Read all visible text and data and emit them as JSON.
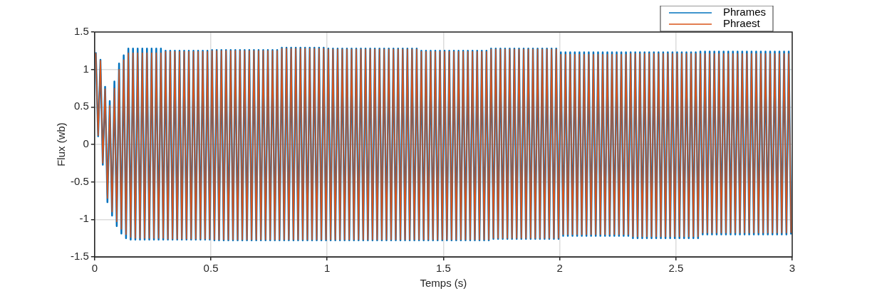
{
  "chart_data": {
    "type": "line",
    "xlabel": "Temps (s)",
    "ylabel": "Flux (wb)",
    "xlim": [
      0,
      3
    ],
    "xticks": [
      0,
      0.5,
      1,
      1.5,
      2,
      2.5,
      3
    ],
    "ylim": [
      -1.5,
      1.5
    ],
    "yticks": [
      -1.5,
      -1,
      -0.5,
      0,
      0.5,
      1,
      1.5
    ],
    "grid": true,
    "legend": "top right",
    "x": [
      0.005,
      0.015,
      0.025,
      0.035,
      0.045,
      0.055,
      0.065,
      0.075,
      0.085,
      0.095,
      0.105,
      0.115,
      0.125,
      0.135,
      0.145,
      0.155,
      0.165,
      0.175,
      0.185,
      0.195,
      0.205,
      0.215,
      0.225,
      0.235,
      0.245,
      0.255,
      0.265,
      0.275,
      0.285,
      0.295,
      0.305,
      0.315,
      0.325,
      0.335,
      0.345,
      0.355,
      0.365,
      0.375,
      0.385,
      0.395,
      0.405,
      0.415,
      0.425,
      0.435,
      0.445,
      0.455,
      0.465,
      0.475,
      0.485,
      0.495,
      0.505,
      0.515,
      0.525,
      0.535,
      0.545,
      0.555,
      0.565,
      0.575,
      0.585,
      0.595,
      0.605,
      0.615,
      0.625,
      0.635,
      0.645,
      0.655,
      0.665,
      0.675,
      0.685,
      0.695,
      0.705,
      0.715,
      0.725,
      0.735,
      0.745,
      0.755,
      0.765,
      0.775,
      0.785,
      0.795,
      0.805,
      0.815,
      0.825,
      0.835,
      0.845,
      0.855,
      0.865,
      0.875,
      0.885,
      0.895,
      0.905,
      0.915,
      0.925,
      0.935,
      0.945,
      0.955,
      0.965,
      0.975,
      0.985,
      0.995,
      1.005,
      1.015,
      1.025,
      1.035,
      1.045,
      1.055,
      1.065,
      1.075,
      1.085,
      1.095,
      1.105,
      1.115,
      1.125,
      1.135,
      1.145,
      1.155,
      1.165,
      1.175,
      1.185,
      1.195,
      1.205,
      1.215,
      1.225,
      1.235,
      1.245,
      1.255,
      1.265,
      1.275,
      1.285,
      1.295,
      1.305,
      1.315,
      1.325,
      1.335,
      1.345,
      1.355,
      1.365,
      1.375,
      1.385,
      1.395,
      1.405,
      1.415,
      1.425,
      1.435,
      1.445,
      1.455,
      1.465,
      1.475,
      1.485,
      1.495,
      1.505,
      1.515,
      1.525,
      1.535,
      1.545,
      1.555,
      1.565,
      1.575,
      1.585,
      1.595,
      1.605,
      1.615,
      1.625,
      1.635,
      1.645,
      1.655,
      1.665,
      1.675,
      1.685,
      1.695,
      1.705,
      1.715,
      1.725,
      1.735,
      1.745,
      1.755,
      1.765,
      1.775,
      1.785,
      1.795,
      1.805,
      1.815,
      1.825,
      1.835,
      1.845,
      1.855,
      1.865,
      1.875,
      1.885,
      1.895,
      1.905,
      1.915,
      1.925,
      1.935,
      1.945,
      1.955,
      1.965,
      1.975,
      1.985,
      1.995,
      2.005,
      2.015,
      2.025,
      2.035,
      2.045,
      2.055,
      2.065,
      2.075,
      2.085,
      2.095,
      2.105,
      2.115,
      2.125,
      2.135,
      2.145,
      2.155,
      2.165,
      2.175,
      2.185,
      2.195,
      2.205,
      2.215,
      2.225,
      2.235,
      2.245,
      2.255,
      2.265,
      2.275,
      2.285,
      2.295,
      2.305,
      2.315,
      2.325,
      2.335,
      2.345,
      2.355,
      2.365,
      2.375,
      2.385,
      2.395,
      2.405,
      2.415,
      2.425,
      2.435,
      2.445,
      2.455,
      2.465,
      2.475,
      2.485,
      2.495,
      2.505,
      2.515,
      2.525,
      2.535,
      2.545,
      2.555,
      2.565,
      2.575,
      2.585,
      2.595,
      2.605,
      2.615,
      2.625,
      2.635,
      2.645,
      2.655,
      2.665,
      2.675,
      2.685,
      2.695,
      2.705,
      2.715,
      2.725,
      2.735,
      2.745,
      2.755,
      2.765,
      2.775,
      2.785,
      2.795,
      2.805,
      2.815,
      2.825,
      2.835,
      2.845,
      2.855,
      2.865,
      2.875,
      2.885,
      2.895,
      2.905,
      2.915,
      2.925,
      2.935,
      2.945,
      2.955,
      2.965,
      2.975,
      2.985,
      2.995
    ],
    "series": [
      {
        "name": "Phrames",
        "color": "#0072bd",
        "values": [
          1.23,
          0.11,
          1.13,
          -0.27,
          0.77,
          -0.77,
          0.58,
          -0.95,
          0.84,
          -1.09,
          1.08,
          -1.19,
          1.19,
          -1.25,
          1.28,
          -1.27,
          1.28,
          -1.27,
          1.28,
          -1.27,
          1.28,
          -1.27,
          1.28,
          -1.27,
          1.28,
          -1.27,
          1.28,
          -1.27,
          1.28,
          -1.27,
          1.25,
          -1.27,
          1.25,
          -1.27,
          1.25,
          -1.27,
          1.25,
          -1.27,
          1.25,
          -1.27,
          1.25,
          -1.27,
          1.25,
          -1.27,
          1.25,
          -1.27,
          1.25,
          -1.27,
          1.25,
          -1.27,
          1.26,
          -1.28,
          1.26,
          -1.28,
          1.26,
          -1.28,
          1.26,
          -1.28,
          1.26,
          -1.28,
          1.26,
          -1.28,
          1.26,
          -1.28,
          1.26,
          -1.28,
          1.26,
          -1.28,
          1.26,
          -1.28,
          1.26,
          -1.28,
          1.26,
          -1.28,
          1.26,
          -1.28,
          1.26,
          -1.28,
          1.26,
          -1.28,
          1.29,
          -1.28,
          1.29,
          -1.28,
          1.29,
          -1.28,
          1.29,
          -1.28,
          1.29,
          -1.28,
          1.29,
          -1.28,
          1.29,
          -1.28,
          1.29,
          -1.28,
          1.29,
          -1.28,
          1.29,
          -1.28,
          1.28,
          -1.28,
          1.28,
          -1.28,
          1.28,
          -1.28,
          1.28,
          -1.28,
          1.28,
          -1.28,
          1.28,
          -1.28,
          1.28,
          -1.28,
          1.28,
          -1.28,
          1.28,
          -1.28,
          1.28,
          -1.28,
          1.28,
          -1.28,
          1.28,
          -1.28,
          1.28,
          -1.28,
          1.28,
          -1.28,
          1.28,
          -1.28,
          1.28,
          -1.28,
          1.28,
          -1.28,
          1.28,
          -1.28,
          1.28,
          -1.28,
          1.28,
          -1.28,
          1.25,
          -1.28,
          1.25,
          -1.28,
          1.25,
          -1.28,
          1.25,
          -1.28,
          1.25,
          -1.28,
          1.25,
          -1.28,
          1.25,
          -1.28,
          1.25,
          -1.28,
          1.25,
          -1.28,
          1.25,
          -1.28,
          1.25,
          -1.28,
          1.25,
          -1.28,
          1.25,
          -1.28,
          1.25,
          -1.28,
          1.25,
          -1.28,
          1.28,
          -1.26,
          1.28,
          -1.26,
          1.28,
          -1.26,
          1.28,
          -1.26,
          1.28,
          -1.26,
          1.28,
          -1.26,
          1.28,
          -1.26,
          1.28,
          -1.26,
          1.28,
          -1.26,
          1.28,
          -1.26,
          1.28,
          -1.26,
          1.28,
          -1.26,
          1.28,
          -1.26,
          1.28,
          -1.26,
          1.28,
          -1.26,
          1.23,
          -1.22,
          1.23,
          -1.22,
          1.23,
          -1.22,
          1.23,
          -1.22,
          1.23,
          -1.22,
          1.23,
          -1.22,
          1.23,
          -1.22,
          1.23,
          -1.22,
          1.23,
          -1.22,
          1.23,
          -1.22,
          1.23,
          -1.22,
          1.23,
          -1.22,
          1.23,
          -1.22,
          1.23,
          -1.22,
          1.23,
          -1.22,
          1.23,
          -1.25,
          1.23,
          -1.25,
          1.23,
          -1.25,
          1.23,
          -1.25,
          1.23,
          -1.25,
          1.23,
          -1.25,
          1.23,
          -1.25,
          1.23,
          -1.25,
          1.23,
          -1.25,
          1.23,
          -1.25,
          1.23,
          -1.25,
          1.23,
          -1.25,
          1.23,
          -1.25,
          1.23,
          -1.25,
          1.23,
          -1.25,
          1.24,
          -1.2,
          1.24,
          -1.2,
          1.24,
          -1.2,
          1.24,
          -1.2,
          1.24,
          -1.2,
          1.24,
          -1.2,
          1.24,
          -1.2,
          1.24,
          -1.2,
          1.24,
          -1.2,
          1.24,
          -1.2,
          1.24,
          -1.2,
          1.24,
          -1.2,
          1.24,
          -1.2,
          1.24,
          -1.2,
          1.24,
          -1.2,
          1.24,
          -1.2,
          1.24,
          -1.2,
          1.24,
          -1.2,
          1.24,
          -1.2,
          1.24,
          -1.2
        ]
      },
      {
        "name": "Phraest",
        "color": "#d95319",
        "values": [
          1.22,
          0.12,
          1.12,
          -0.25,
          0.74,
          -0.72,
          0.52,
          -0.9,
          0.75,
          -1.03,
          1,
          -1.13,
          1.13,
          -1.2,
          1.22,
          -1.24,
          1.22,
          -1.25,
          1.22,
          -1.25,
          1.22,
          -1.25,
          1.22,
          -1.25,
          1.22,
          -1.25,
          1.22,
          -1.25,
          1.22,
          -1.25,
          1.24,
          -1.26,
          1.24,
          -1.26,
          1.24,
          -1.26,
          1.24,
          -1.26,
          1.24,
          -1.26,
          1.24,
          -1.26,
          1.24,
          -1.26,
          1.24,
          -1.26,
          1.24,
          -1.26,
          1.24,
          -1.26,
          1.25,
          -1.27,
          1.25,
          -1.27,
          1.25,
          -1.27,
          1.25,
          -1.27,
          1.25,
          -1.27,
          1.25,
          -1.27,
          1.25,
          -1.27,
          1.25,
          -1.27,
          1.25,
          -1.27,
          1.25,
          -1.27,
          1.25,
          -1.27,
          1.25,
          -1.27,
          1.25,
          -1.27,
          1.25,
          -1.27,
          1.25,
          -1.27,
          1.28,
          -1.27,
          1.28,
          -1.27,
          1.28,
          -1.27,
          1.28,
          -1.27,
          1.28,
          -1.27,
          1.28,
          -1.27,
          1.28,
          -1.27,
          1.28,
          -1.27,
          1.28,
          -1.27,
          1.28,
          -1.27,
          1.27,
          -1.27,
          1.27,
          -1.27,
          1.27,
          -1.27,
          1.27,
          -1.27,
          1.27,
          -1.27,
          1.27,
          -1.27,
          1.27,
          -1.27,
          1.27,
          -1.27,
          1.27,
          -1.27,
          1.27,
          -1.27,
          1.27,
          -1.27,
          1.27,
          -1.27,
          1.27,
          -1.27,
          1.27,
          -1.27,
          1.27,
          -1.27,
          1.27,
          -1.27,
          1.27,
          -1.27,
          1.27,
          -1.27,
          1.27,
          -1.27,
          1.27,
          -1.27,
          1.24,
          -1.27,
          1.24,
          -1.27,
          1.24,
          -1.27,
          1.24,
          -1.27,
          1.24,
          -1.27,
          1.24,
          -1.27,
          1.24,
          -1.27,
          1.24,
          -1.27,
          1.24,
          -1.27,
          1.24,
          -1.27,
          1.24,
          -1.27,
          1.24,
          -1.27,
          1.24,
          -1.27,
          1.24,
          -1.27,
          1.24,
          -1.27,
          1.27,
          -1.25,
          1.27,
          -1.25,
          1.27,
          -1.25,
          1.27,
          -1.25,
          1.27,
          -1.25,
          1.27,
          -1.25,
          1.27,
          -1.25,
          1.27,
          -1.25,
          1.27,
          -1.25,
          1.27,
          -1.25,
          1.27,
          -1.25,
          1.27,
          -1.25,
          1.27,
          -1.25,
          1.27,
          -1.25,
          1.27,
          -1.25,
          1.2,
          -1.2,
          1.2,
          -1.2,
          1.2,
          -1.2,
          1.2,
          -1.2,
          1.2,
          -1.2,
          1.2,
          -1.2,
          1.2,
          -1.2,
          1.2,
          -1.2,
          1.2,
          -1.2,
          1.2,
          -1.2,
          1.2,
          -1.2,
          1.2,
          -1.2,
          1.2,
          -1.2,
          1.2,
          -1.2,
          1.2,
          -1.2,
          1.21,
          -1.23,
          1.21,
          -1.23,
          1.21,
          -1.23,
          1.21,
          -1.23,
          1.21,
          -1.23,
          1.21,
          -1.23,
          1.21,
          -1.23,
          1.21,
          -1.23,
          1.21,
          -1.23,
          1.21,
          -1.23,
          1.21,
          -1.23,
          1.21,
          -1.23,
          1.21,
          -1.23,
          1.21,
          -1.23,
          1.21,
          -1.23,
          1.21,
          -1.18,
          1.21,
          -1.18,
          1.21,
          -1.18,
          1.21,
          -1.18,
          1.21,
          -1.18,
          1.21,
          -1.18,
          1.21,
          -1.18,
          1.21,
          -1.18,
          1.21,
          -1.18,
          1.21,
          -1.18,
          1.21,
          -1.18,
          1.21,
          -1.18,
          1.21,
          -1.18,
          1.21,
          -1.18,
          1.21,
          -1.18,
          1.21,
          -1.18,
          1.21,
          -1.18,
          1.21,
          -1.18,
          1.21,
          -1.18,
          1.21,
          -1.18
        ]
      }
    ]
  }
}
